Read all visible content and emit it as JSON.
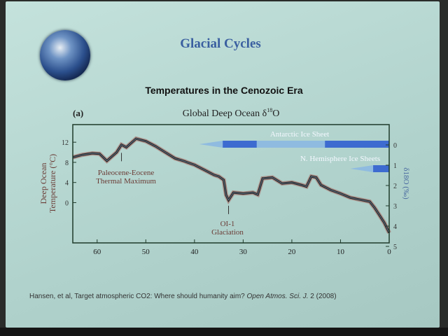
{
  "slide": {
    "title": "Glacial Cycles",
    "subtitle": "Temperatures in the Cenozoic Era",
    "citation": "Hansen, et al, Target atmospheric CO2: Where should humanity aim? ",
    "citation_journal": "Open Atmos. Sci. J.",
    "citation_tail": " 2 (2008)",
    "globe_icon": "earth-globe"
  },
  "chart_data": {
    "type": "line",
    "panel_label": "(a)",
    "title": "Global Deep Ocean δ18O",
    "ylabel": "Deep Ocean Temperature (°C)",
    "ylabel_line1": "Deep Ocean",
    "ylabel_line2": "Temperature (°C)",
    "y2label": "δ18O (‰)",
    "xlim": [
      65,
      0
    ],
    "ylim": [
      -8,
      15.5
    ],
    "y2lim": [
      -0.5,
      5
    ],
    "x_ticks": [
      60,
      50,
      40,
      30,
      20,
      10,
      0
    ],
    "y_ticks": [
      12,
      8,
      4,
      0
    ],
    "y2_ticks": [
      0,
      1,
      2,
      3,
      4,
      5
    ],
    "series": [
      {
        "x": [
          65,
          63,
          61,
          59.5,
          58,
          56,
          55,
          54,
          52,
          50,
          48,
          46,
          44,
          42,
          41.5,
          40,
          38,
          36,
          35,
          34,
          33.5,
          33,
          32,
          30,
          28,
          27,
          26,
          24,
          22,
          20,
          18,
          17,
          16,
          15,
          14,
          12,
          10,
          8,
          6,
          4,
          3,
          2,
          1,
          0
        ],
        "y": [
          9,
          9.5,
          9.8,
          9.7,
          8.3,
          10,
          11.5,
          11,
          12.7,
          12.2,
          11.2,
          10,
          8.8,
          8.2,
          8,
          7.5,
          6.5,
          5.5,
          5.2,
          4.5,
          1.5,
          0.5,
          2,
          1.8,
          2,
          1.6,
          4.8,
          5,
          3.8,
          4,
          3.5,
          3.2,
          5.2,
          5,
          3.5,
          2.5,
          1.8,
          1,
          0.6,
          0.2,
          -1,
          -2.5,
          -4,
          -6
        ]
      }
    ],
    "annotations": [
      {
        "text": "Paleocene-Eocene",
        "text2": "Thermal Maximum",
        "x": 55
      },
      {
        "text": "OI-1",
        "text2": "Glaciation",
        "x": 33
      }
    ],
    "ice_sheets": [
      {
        "name": "Antarctic Ice Sheet",
        "segments": [
          {
            "from": 39,
            "to": 34.2,
            "kind": "taper"
          },
          {
            "from": 34.2,
            "to": 27.2,
            "kind": "full"
          },
          {
            "from": 27.2,
            "to": 13.2,
            "kind": "partial"
          },
          {
            "from": 13.2,
            "to": 0,
            "kind": "full"
          }
        ]
      },
      {
        "name": "N. Hemisphere Ice Sheets",
        "segments": [
          {
            "from": 8,
            "to": 3.3,
            "kind": "taper"
          },
          {
            "from": 3.3,
            "to": 0,
            "kind": "full"
          }
        ]
      }
    ],
    "colors": {
      "line": "#1a1a1a",
      "band": "#a0504a",
      "mean": "#9fb8d8",
      "ice_full": "#3d6bd0",
      "ice_partial": "#8fbbe0",
      "axis": "#1e3a2a"
    }
  }
}
